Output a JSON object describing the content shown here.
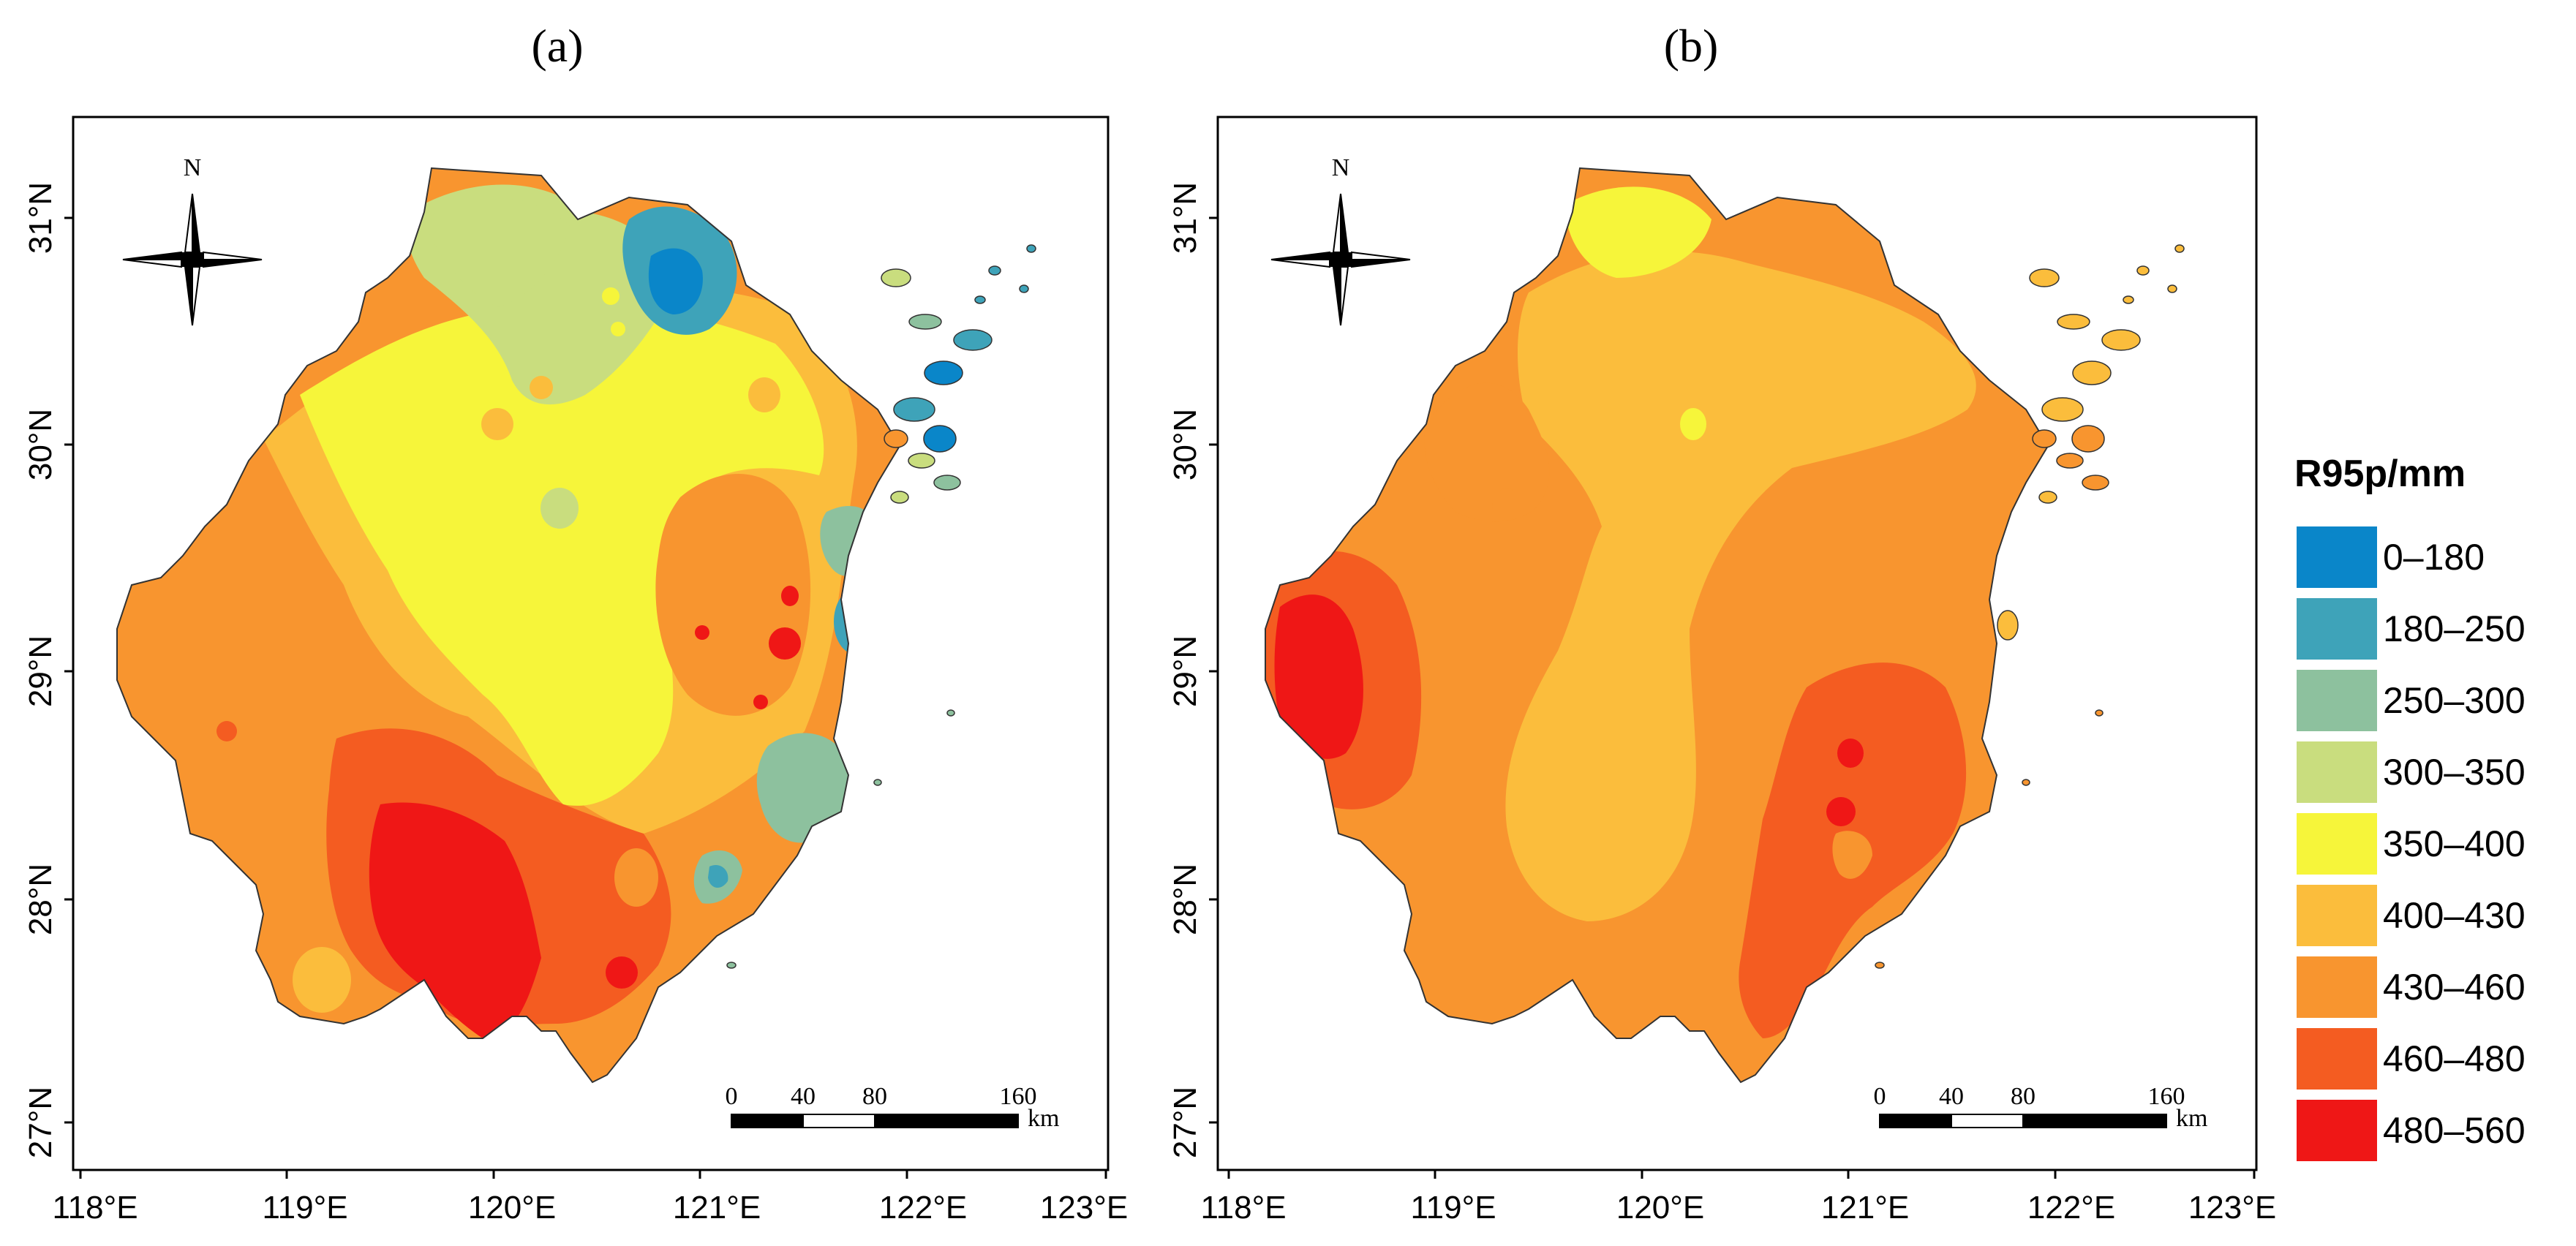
{
  "figure": {
    "panels": [
      {
        "label": "(a)",
        "x_ticks": [
          "118°E",
          "119°E",
          "120°E",
          "121°E",
          "122°E",
          "123°E"
        ],
        "y_ticks": [
          "27°N",
          "28°N",
          "29°N",
          "30°N",
          "31°N"
        ],
        "compass_label": "N",
        "scale": {
          "marks": [
            "0",
            "40",
            "80",
            "160"
          ],
          "unit": "km"
        }
      },
      {
        "label": "(b)",
        "x_ticks": [
          "118°E",
          "119°E",
          "120°E",
          "121°E",
          "122°E",
          "123°E"
        ],
        "y_ticks": [
          "27°N",
          "28°N",
          "29°N",
          "30°N",
          "31°N"
        ],
        "compass_label": "N",
        "scale": {
          "marks": [
            "0",
            "40",
            "80",
            "160"
          ],
          "unit": "km"
        }
      }
    ],
    "legend": {
      "title": "R95p/mm",
      "classes": [
        {
          "label": "0–180",
          "color": "#0a86c9"
        },
        {
          "label": "180–250",
          "color": "#3ea3b9"
        },
        {
          "label": "250–300",
          "color": "#8dc19e"
        },
        {
          "label": "300–350",
          "color": "#c9dd7e"
        },
        {
          "label": "350–400",
          "color": "#f6f53a"
        },
        {
          "label": "400–430",
          "color": "#fbbd3c"
        },
        {
          "label": "430–460",
          "color": "#f8952f"
        },
        {
          "label": "460–480",
          "color": "#f45c21"
        },
        {
          "label": "480–560",
          "color": "#ef1716"
        }
      ]
    }
  }
}
